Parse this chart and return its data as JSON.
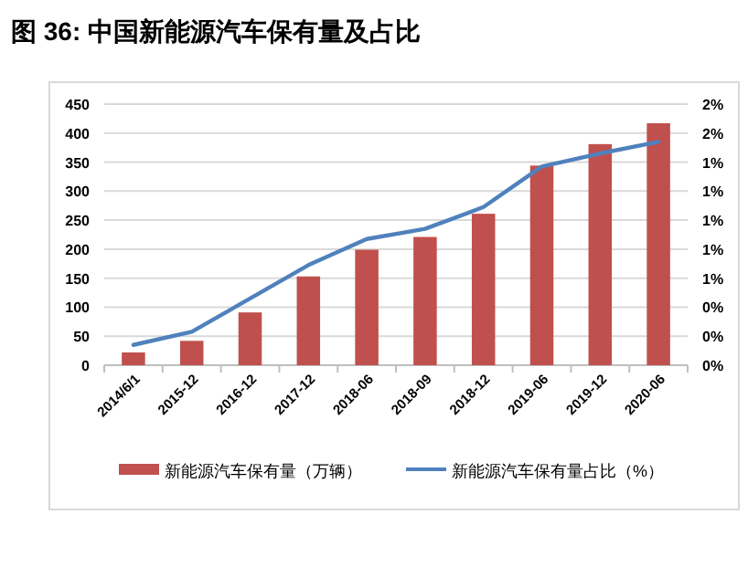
{
  "chart_data": {
    "type": "bar",
    "title": "图 36:  中国新能源汽车保有量及占比",
    "categories": [
      "2014/6/1",
      "2015-12",
      "2016-12",
      "2017-12",
      "2018-06",
      "2018-09",
      "2018-12",
      "2019-06",
      "2019-12",
      "2020-06"
    ],
    "series": [
      {
        "name": "新能源汽车保有量（万辆）",
        "color": "#c0504d",
        "values": [
          22,
          42,
          91,
          153,
          199,
          221,
          261,
          344,
          381,
          417
        ]
      },
      {
        "name": "新能源汽车保有量占比（%）",
        "type": "line",
        "axis": "y2",
        "color": "#4f81bd",
        "marker": "none",
        "line_style": "solid",
        "values": [
          0.14,
          0.23,
          0.46,
          0.69,
          0.87,
          0.94,
          1.09,
          1.37,
          1.46,
          1.54
        ]
      }
    ],
    "ylim": [
      0,
      450
    ],
    "yticks": [
      0,
      50,
      100,
      150,
      200,
      250,
      300,
      350,
      400,
      450
    ],
    "y2lim": [
      0,
      1.8
    ],
    "y2ticks": [
      {
        "value": 0,
        "label": "0%"
      },
      {
        "value": 0.2,
        "label": "0%"
      },
      {
        "value": 0.4,
        "label": "0%"
      },
      {
        "value": 0.6,
        "label": "1%"
      },
      {
        "value": 0.8,
        "label": "1%"
      },
      {
        "value": 1.0,
        "label": "1%"
      },
      {
        "value": 1.2,
        "label": "1%"
      },
      {
        "value": 1.4,
        "label": "1%"
      },
      {
        "value": 1.6,
        "label": "2%"
      },
      {
        "value": 1.8,
        "label": "2%"
      }
    ],
    "grid": "y",
    "legend": "bottom"
  }
}
